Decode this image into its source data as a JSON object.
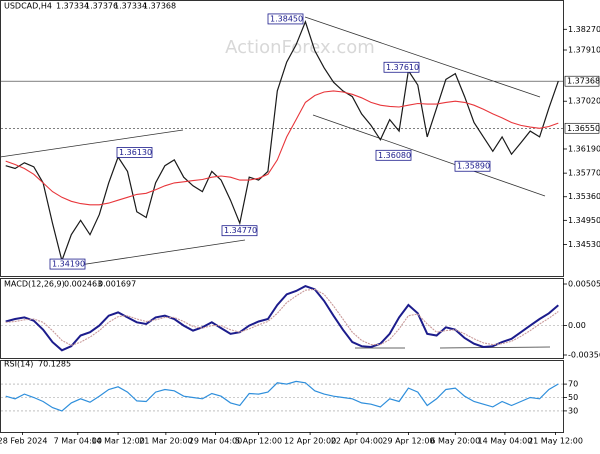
{
  "chart_data": [
    {
      "type": "line",
      "symbol": "USDCAD,H4",
      "ohlc": [
        1.37334,
        1.37376,
        1.37334,
        1.37368
      ],
      "watermark": "ActionForex.com",
      "xlim": [
        0,
        60
      ],
      "ylim": [
        1.34,
        1.3864
      ],
      "yticks": [
        {
          "value": 1.3827,
          "label": "1.38270"
        },
        {
          "value": 1.3791,
          "label": "1.37910"
        },
        {
          "value": 1.3702,
          "label": "1.37020"
        },
        {
          "value": 1.3619,
          "label": "1.36190"
        },
        {
          "value": 1.3577,
          "label": "1.35770"
        },
        {
          "value": 1.3536,
          "label": "1.35360"
        },
        {
          "value": 1.3495,
          "label": "1.34950"
        },
        {
          "value": 1.3453,
          "label": "1.34530"
        }
      ],
      "price_lines": [
        1.37368,
        {
          "value": 1.3655,
          "label": "1.36550"
        }
      ],
      "annotations": [
        {
          "value": 1.3845,
          "label": "1.38450"
        },
        {
          "value": 1.3761,
          "label": "1.37610"
        },
        {
          "value": 1.3613,
          "label": "1.36130"
        },
        {
          "value": 1.3608,
          "label": "1.36080"
        },
        {
          "value": 1.3589,
          "label": "1.35890"
        },
        {
          "value": 1.3477,
          "label": "1.34770"
        },
        {
          "value": 1.3419,
          "label": "1.34190"
        }
      ],
      "series": [
        {
          "color": "#1a1a1a",
          "values": [
            1.359,
            1.3585,
            1.3595,
            1.3588,
            1.356,
            1.349,
            1.3425,
            1.347,
            1.3495,
            1.347,
            1.3505,
            1.356,
            1.3605,
            1.358,
            1.351,
            1.35,
            1.356,
            1.359,
            1.36,
            1.357,
            1.3555,
            1.3545,
            1.358,
            1.3565,
            1.353,
            1.349,
            1.357,
            1.3565,
            1.358,
            1.372,
            1.377,
            1.38,
            1.384,
            1.379,
            1.376,
            1.3735,
            1.372,
            1.371,
            1.368,
            1.366,
            1.3635,
            1.367,
            1.365,
            1.3755,
            1.373,
            1.364,
            1.369,
            1.374,
            1.375,
            1.371,
            1.3665,
            1.364,
            1.3615,
            1.364,
            1.361,
            1.363,
            1.365,
            1.364,
            1.369,
            1.37368
          ]
        },
        {
          "color": "#e8363b",
          "values": [
            1.3598,
            1.3592,
            1.3585,
            1.3575,
            1.356,
            1.3545,
            1.3535,
            1.3528,
            1.3524,
            1.3522,
            1.3522,
            1.3525,
            1.353,
            1.3535,
            1.354,
            1.3542,
            1.3548,
            1.3555,
            1.356,
            1.3562,
            1.3564,
            1.3566,
            1.357,
            1.3572,
            1.357,
            1.3565,
            1.3565,
            1.3568,
            1.3575,
            1.36,
            1.364,
            1.367,
            1.37,
            1.3712,
            1.3718,
            1.372,
            1.3718,
            1.3714,
            1.3708,
            1.37,
            1.3695,
            1.3693,
            1.3692,
            1.3695,
            1.3698,
            1.3697,
            1.3697,
            1.37,
            1.3702,
            1.37,
            1.3695,
            1.3688,
            1.368,
            1.3673,
            1.3665,
            1.366,
            1.3657,
            1.3655,
            1.3658,
            1.3664
          ]
        }
      ]
    },
    {
      "type": "line",
      "title": "MACD(12,26,9)",
      "header_values": [
        0.002463,
        0.001697
      ],
      "xlim": [
        0,
        60
      ],
      "ylim": [
        -0.003569,
        0.005054
      ],
      "yticks": [
        0.005054,
        {
          "value": 0,
          "label": "0.00"
        },
        -0.003569
      ],
      "series": [
        {
          "color": "#1c1c8c",
          "values": [
            0.0005,
            0.0008,
            0.001,
            0.0006,
            -0.0005,
            -0.002,
            -0.003,
            -0.0025,
            -0.0012,
            -0.0008,
            0.0,
            0.0012,
            0.0016,
            0.001,
            0.0004,
            0.0002,
            0.001,
            0.0012,
            0.0008,
            0.0,
            -0.0006,
            -0.0002,
            0.0004,
            -0.0003,
            -0.001,
            -0.0008,
            0.0,
            0.0005,
            0.0008,
            0.0025,
            0.0038,
            0.0042,
            0.0048,
            0.0044,
            0.003,
            0.0012,
            -0.0005,
            -0.002,
            -0.0025,
            -0.0026,
            -0.0022,
            -0.001,
            0.001,
            0.0025,
            0.0015,
            -0.001,
            -0.0012,
            -0.0002,
            -0.0005,
            -0.0015,
            -0.0022,
            -0.0026,
            -0.0025,
            -0.002,
            -0.0016,
            -0.0008,
            0.0,
            0.0008,
            0.0015,
            0.002463
          ]
        },
        {
          "color": "#c99a9a",
          "values": [
            0.0004,
            0.0005,
            0.0007,
            0.0008,
            0.0004,
            -0.0006,
            -0.0018,
            -0.0024,
            -0.002,
            -0.0014,
            -0.0006,
            0.0004,
            0.0011,
            0.0012,
            0.0008,
            0.0005,
            0.0007,
            0.001,
            0.001,
            0.0005,
            -0.0001,
            -0.0003,
            0.0,
            0.0,
            -0.0005,
            -0.0008,
            -0.0004,
            0.0001,
            0.0005,
            0.0015,
            0.0028,
            0.0036,
            0.0043,
            0.0044,
            0.0038,
            0.0024,
            0.0008,
            -0.0008,
            -0.0018,
            -0.0023,
            -0.0023,
            -0.0017,
            -0.0004,
            0.0012,
            0.0014,
            0.0002,
            -0.0008,
            -0.0006,
            -0.0005,
            -0.001,
            -0.0016,
            -0.0021,
            -0.0023,
            -0.0022,
            -0.0019,
            -0.0013,
            -0.0006,
            0.0002,
            0.0009,
            0.001697
          ]
        }
      ]
    },
    {
      "type": "line",
      "title": "RSI(14)",
      "header_values": [
        70.1285
      ],
      "xlim": [
        0,
        60
      ],
      "ylim": [
        0,
        100
      ],
      "yticks": [
        70,
        50,
        30
      ],
      "xticks": [
        {
          "value": 2.3,
          "label": "28 Feb 2024"
        },
        {
          "value": 8.2,
          "label": "7 Mar 04:00"
        },
        {
          "value": 12.5,
          "label": "14 Mar 12:00"
        },
        {
          "value": 17.6,
          "label": "21 Mar 20:00"
        },
        {
          "value": 22.9,
          "label": "29 Mar 04:00"
        },
        {
          "value": 27.5,
          "label": "5 Apr 12:00"
        },
        {
          "value": 33,
          "label": "12 Apr 20:00"
        },
        {
          "value": 38,
          "label": "22 Apr 04:00"
        },
        {
          "value": 43.5,
          "label": "29 Apr 12:00"
        },
        {
          "value": 48.5,
          "label": "6 May 20:00"
        },
        {
          "value": 53.8,
          "label": "14 May 04:00"
        },
        {
          "value": 59.2,
          "label": "21 May 12:00"
        }
      ],
      "series": [
        {
          "color": "#2f8fdc",
          "values": [
            52,
            48,
            55,
            50,
            44,
            35,
            30,
            42,
            48,
            43,
            52,
            62,
            66,
            58,
            45,
            44,
            58,
            62,
            60,
            52,
            50,
            48,
            56,
            52,
            42,
            38,
            56,
            55,
            58,
            72,
            70,
            74,
            72,
            60,
            55,
            52,
            50,
            48,
            42,
            40,
            36,
            48,
            44,
            64,
            58,
            38,
            48,
            62,
            64,
            52,
            44,
            40,
            36,
            44,
            38,
            44,
            50,
            48,
            62,
            70.1285
          ]
        }
      ]
    }
  ]
}
